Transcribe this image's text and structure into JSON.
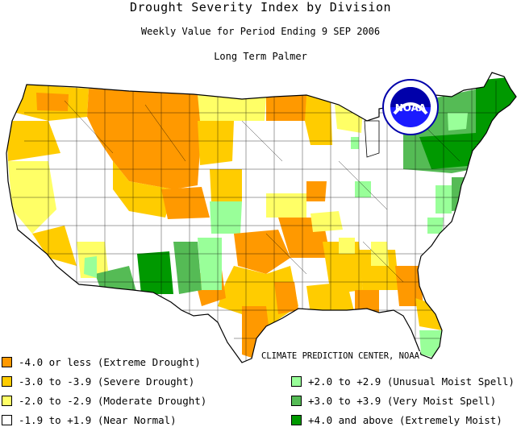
{
  "title": "Drought Severity Index by Division",
  "subtitle": "Weekly Value for Period Ending  9 SEP 2006",
  "index_name": "Long Term Palmer",
  "credit": "CLIMATE PREDICTION CENTER, NOAA",
  "logo": {
    "text": "NOAA",
    "icon": "noaa-logo"
  },
  "colors": {
    "extreme_drought": "#ff9900",
    "severe_drought": "#ffcc00",
    "moderate_drought": "#ffff66",
    "near_normal": "#ffffff",
    "unusual_moist": "#99ff99",
    "very_moist": "#55bb55",
    "extremely_moist": "#009900"
  },
  "legend": {
    "left": [
      {
        "label": "-4.0 or less (Extreme Drought)",
        "color": "#ff9900"
      },
      {
        "label": "-3.0 to -3.9 (Severe Drought)",
        "color": "#ffcc00"
      },
      {
        "label": "-2.0 to -2.9 (Moderate Drought)",
        "color": "#ffff66"
      },
      {
        "label": "-1.9 to +1.9 (Near Normal)",
        "color": "#ffffff"
      }
    ],
    "right": [
      {
        "label": "+2.0 to +2.9 (Unusual Moist Spell)",
        "color": "#99ff99"
      },
      {
        "label": "+3.0 to +3.9 (Very Moist Spell)",
        "color": "#55bb55"
      },
      {
        "label": "+4.0 and above (Extremely Moist)",
        "color": "#009900"
      }
    ]
  }
}
